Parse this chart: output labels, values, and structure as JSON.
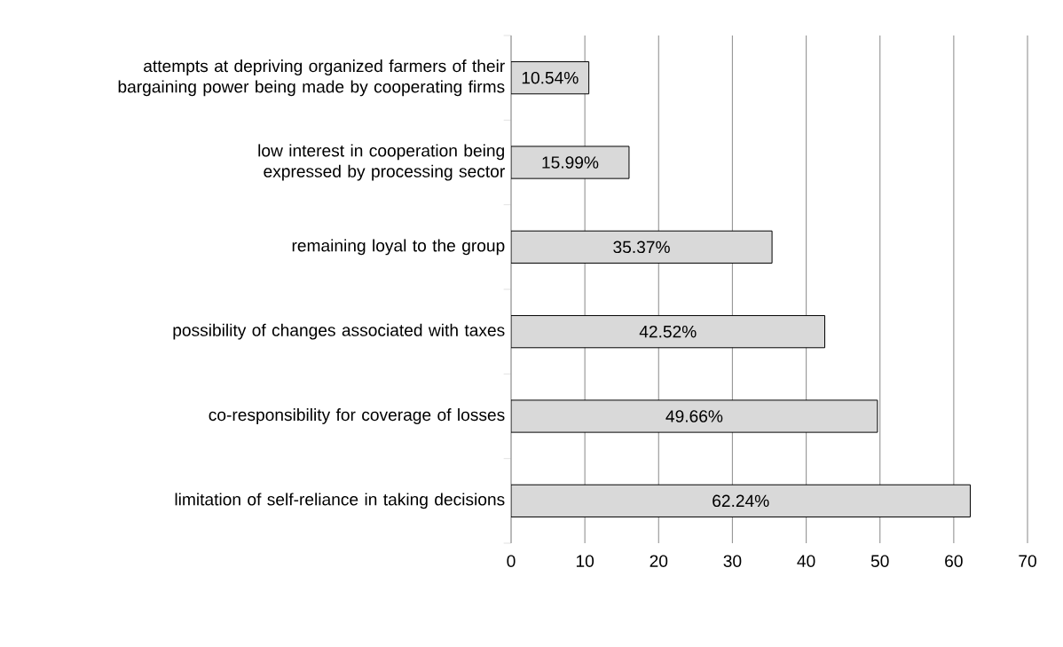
{
  "chart_data": {
    "type": "bar",
    "orientation": "horizontal",
    "categories": [
      "attempts at depriving organized farmers of their bargaining power being made by cooperating firms",
      "low interest in cooperation being expressed by processing sector",
      "remaining loyal to the group",
      "possibility of changes associated with taxes",
      "co-responsibility for coverage of losses",
      "limitation of self-reliance in taking decisions"
    ],
    "values": [
      10.54,
      15.99,
      35.37,
      42.52,
      49.66,
      62.24
    ],
    "value_labels": [
      "10.54%",
      "15.99%",
      "35.37%",
      "42.52%",
      "49.66%",
      "62.24%"
    ],
    "color": "#d9d9d9",
    "xlim": [
      0,
      70
    ],
    "xticks": [
      0,
      10,
      20,
      30,
      40,
      50,
      60,
      70
    ],
    "grid": "x"
  }
}
